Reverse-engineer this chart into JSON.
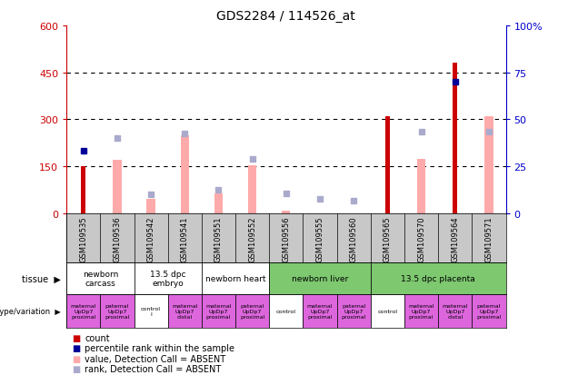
{
  "title": "GDS2284 / 114526_at",
  "samples": [
    "GSM109535",
    "GSM109536",
    "GSM109542",
    "GSM109541",
    "GSM109551",
    "GSM109552",
    "GSM109556",
    "GSM109555",
    "GSM109560",
    "GSM109565",
    "GSM109570",
    "GSM109564",
    "GSM109571"
  ],
  "count_values": [
    150,
    0,
    0,
    0,
    0,
    0,
    0,
    0,
    0,
    310,
    0,
    480,
    0
  ],
  "percentile_rank_vals": [
    200,
    0,
    0,
    0,
    0,
    0,
    0,
    0,
    0,
    0,
    0,
    420,
    0
  ],
  "absent_value": [
    0,
    170,
    45,
    250,
    65,
    155,
    10,
    0,
    0,
    0,
    175,
    0,
    310
  ],
  "absent_rank_vals": [
    0,
    240,
    60,
    255,
    75,
    175,
    65,
    45,
    40,
    0,
    260,
    0,
    260
  ],
  "ylim_left": [
    0,
    600
  ],
  "ylim_right": [
    0,
    100
  ],
  "yticks_left": [
    0,
    150,
    300,
    450,
    600
  ],
  "yticks_right": [
    0,
    25,
    50,
    75,
    100
  ],
  "tissues": [
    {
      "label": "newborn\ncarcass",
      "start": 0,
      "end": 2,
      "color": "#ffffff"
    },
    {
      "label": "13.5 dpc\nembryo",
      "start": 2,
      "end": 4,
      "color": "#ffffff"
    },
    {
      "label": "newborn heart",
      "start": 4,
      "end": 6,
      "color": "#ffffff"
    },
    {
      "label": "newborn liver",
      "start": 6,
      "end": 9,
      "color": "#7ec870"
    },
    {
      "label": "13.5 dpc placenta",
      "start": 9,
      "end": 13,
      "color": "#7ec870"
    }
  ],
  "genotypes": [
    {
      "label": "maternal\nUpDp7\nproximal",
      "start": 0,
      "end": 1,
      "color": "#dd66dd"
    },
    {
      "label": "paternal\nUpDp7\nproximal",
      "start": 1,
      "end": 2,
      "color": "#dd66dd"
    },
    {
      "label": "control\nl",
      "start": 2,
      "end": 3,
      "color": "#ffffff"
    },
    {
      "label": "maternal\nUpDp7\ndistal",
      "start": 3,
      "end": 4,
      "color": "#dd66dd"
    },
    {
      "label": "maternal\nUpDp7\nproximal",
      "start": 4,
      "end": 5,
      "color": "#dd66dd"
    },
    {
      "label": "paternal\nUpDp7\nproximal",
      "start": 5,
      "end": 6,
      "color": "#dd66dd"
    },
    {
      "label": "control",
      "start": 6,
      "end": 7,
      "color": "#ffffff"
    },
    {
      "label": "maternal\nUpDp7\nproximal",
      "start": 7,
      "end": 8,
      "color": "#dd66dd"
    },
    {
      "label": "paternal\nUpDp7\nproximal",
      "start": 8,
      "end": 9,
      "color": "#dd66dd"
    },
    {
      "label": "control",
      "start": 9,
      "end": 10,
      "color": "#ffffff"
    },
    {
      "label": "maternal\nUpDp7\nproximal",
      "start": 10,
      "end": 11,
      "color": "#dd66dd"
    },
    {
      "label": "maternal\nUpDp7\ndistal",
      "start": 11,
      "end": 12,
      "color": "#dd66dd"
    },
    {
      "label": "paternal\nUpDp7\nproximal",
      "start": 12,
      "end": 13,
      "color": "#dd66dd"
    }
  ],
  "count_color": "#cc0000",
  "percentile_color": "#000099",
  "absent_value_color": "#ffaaaa",
  "absent_rank_color": "#aaaacc",
  "bg_color": "#c8c8c8",
  "left_axis_color": "#cc0000",
  "right_axis_color": "#0000cc"
}
